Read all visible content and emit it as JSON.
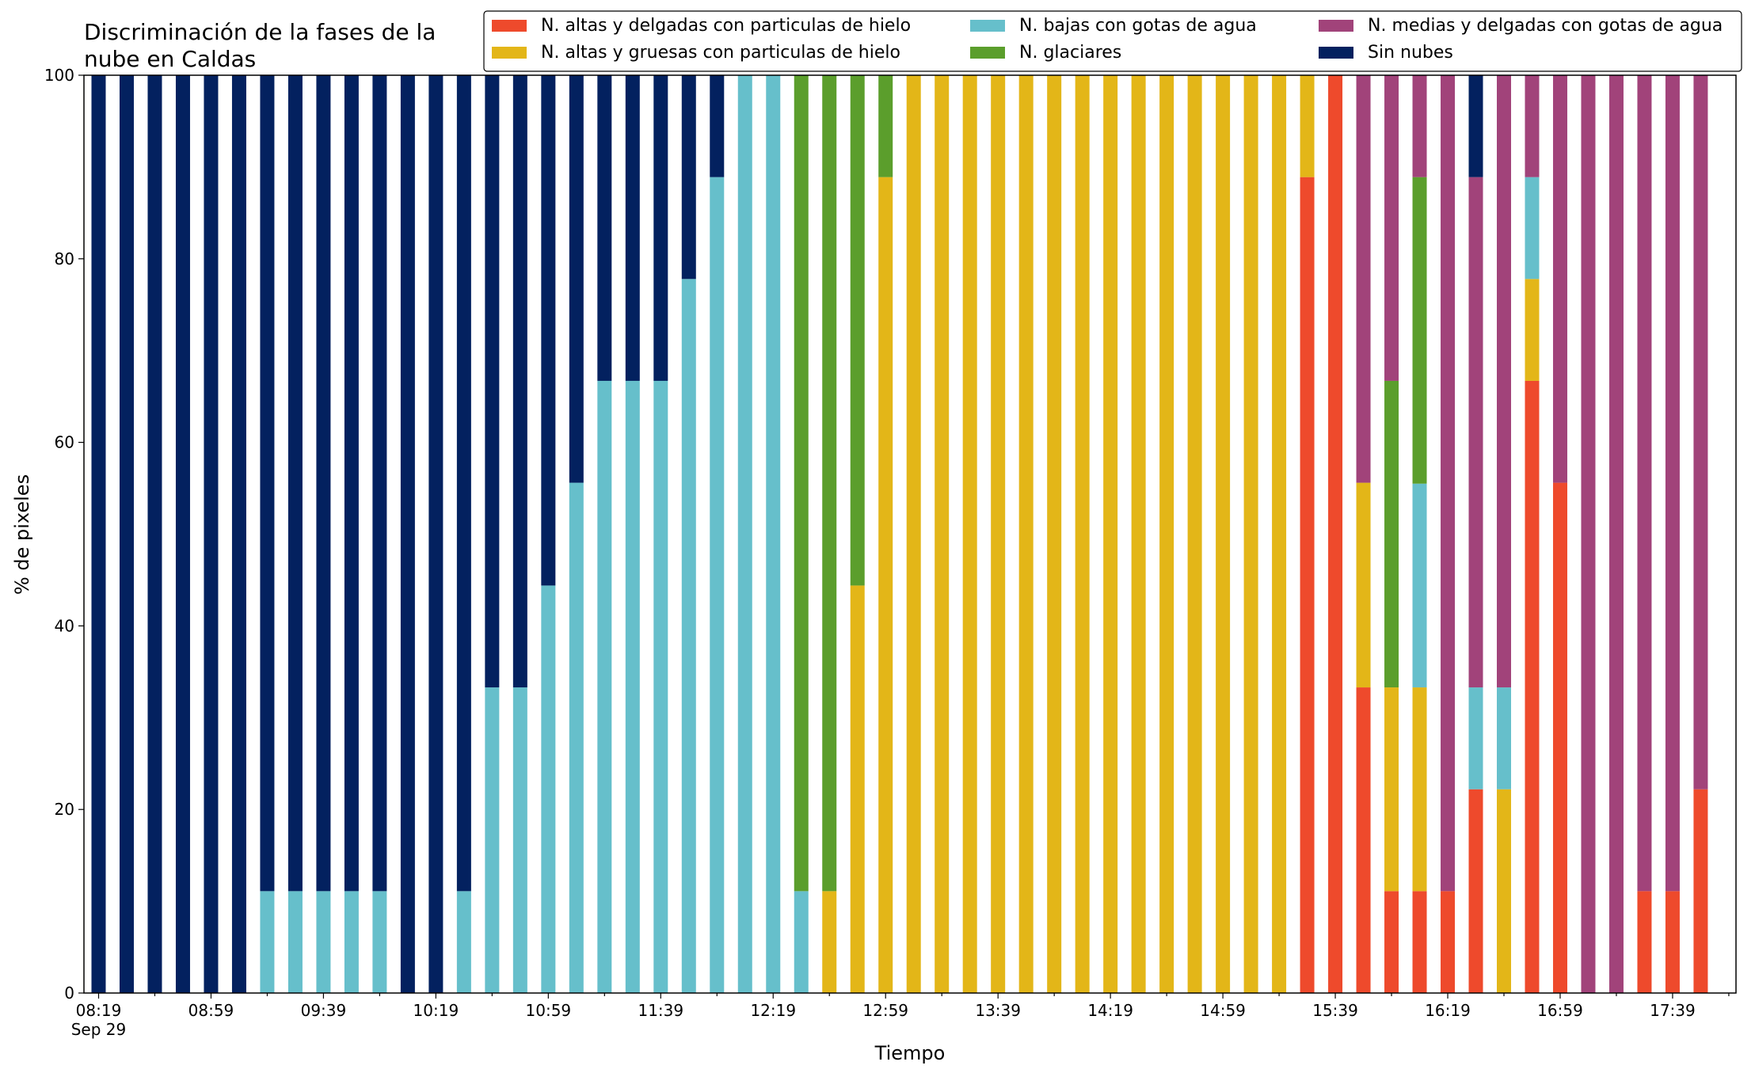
{
  "chart_data": {
    "type": "bar",
    "stacked": true,
    "title": "Discriminación de la fases de la\nnube en Caldas",
    "xlabel": "Tiempo",
    "ylabel": "% de pixeles",
    "ylim": [
      0,
      100
    ],
    "yticks": [
      0,
      20,
      40,
      60,
      80,
      100
    ],
    "grid": false,
    "legend_position": "top-right",
    "legend_columns": 3,
    "x_date": "Sep 29",
    "x_ticks": [
      "08:19",
      "08:59",
      "09:39",
      "10:19",
      "10:59",
      "11:39",
      "12:19",
      "12:59",
      "13:39",
      "14:19",
      "14:59",
      "15:39",
      "16:19",
      "16:59",
      "17:39"
    ],
    "categories": [
      "08:19",
      "08:29",
      "08:39",
      "08:49",
      "08:59",
      "09:09",
      "09:19",
      "09:29",
      "09:39",
      "09:49",
      "09:59",
      "10:09",
      "10:19",
      "10:29",
      "10:39",
      "10:49",
      "10:59",
      "11:09",
      "11:19",
      "11:29",
      "11:39",
      "11:49",
      "11:59",
      "12:09",
      "12:19",
      "12:29",
      "12:39",
      "12:49",
      "12:59",
      "13:09",
      "13:19",
      "13:29",
      "13:39",
      "13:49",
      "13:59",
      "14:09",
      "14:19",
      "14:29",
      "14:39",
      "14:49",
      "14:59",
      "15:09",
      "15:19",
      "15:29",
      "15:39",
      "15:49",
      "15:59",
      "16:09",
      "16:19",
      "16:29",
      "16:39",
      "16:49",
      "16:59",
      "17:09",
      "17:19",
      "17:29",
      "17:39",
      "17:49"
    ],
    "series": [
      {
        "name": "N. altas y delgadas con particulas de hielo",
        "color": "#ee4a2c",
        "values": [
          0,
          0,
          0,
          0,
          0,
          0,
          0,
          0,
          0,
          0,
          0,
          0,
          0,
          0,
          0,
          0,
          0,
          0,
          0,
          0,
          0,
          0,
          0,
          0,
          0,
          0,
          0,
          0,
          0,
          0,
          0,
          0,
          0,
          0,
          0,
          0,
          0,
          0,
          0,
          0,
          0,
          0,
          0,
          88.9,
          100,
          33.3,
          11.1,
          11.1,
          11.1,
          22.2,
          0,
          66.7,
          55.6,
          0,
          0,
          11.1,
          11.1,
          22.2
        ]
      },
      {
        "name": "N. altas y gruesas con particulas de hielo",
        "color": "#e3b618",
        "values": [
          0,
          0,
          0,
          0,
          0,
          0,
          0,
          0,
          0,
          0,
          0,
          0,
          0,
          0,
          0,
          0,
          0,
          0,
          0,
          0,
          0,
          0,
          0,
          0,
          0,
          0,
          11.1,
          44.4,
          88.9,
          100,
          100,
          100,
          100,
          100,
          100,
          100,
          100,
          100,
          100,
          100,
          100,
          100,
          100,
          11.1,
          0,
          22.3,
          22.2,
          22.2,
          0,
          0,
          22.2,
          11.1,
          0,
          0,
          0,
          0,
          0,
          0
        ]
      },
      {
        "name": "N. bajas con gotas de agua",
        "color": "#66bfcb",
        "values": [
          0,
          0,
          0,
          0,
          0,
          0,
          11.1,
          11.1,
          11.1,
          11.1,
          11.1,
          0,
          0,
          11.1,
          33.3,
          33.3,
          44.4,
          55.6,
          66.7,
          66.7,
          66.7,
          77.8,
          88.9,
          100,
          100,
          11.1,
          0,
          0,
          0,
          0,
          0,
          0,
          0,
          0,
          0,
          0,
          0,
          0,
          0,
          0,
          0,
          0,
          0,
          0,
          0,
          0,
          0,
          22.2,
          0,
          11.1,
          11.1,
          11.1,
          0,
          0,
          0,
          0,
          0,
          0
        ]
      },
      {
        "name": "N. glaciares",
        "color": "#5b9e2c",
        "values": [
          0,
          0,
          0,
          0,
          0,
          0,
          0,
          0,
          0,
          0,
          0,
          0,
          0,
          0,
          0,
          0,
          0,
          0,
          0,
          0,
          0,
          0,
          0,
          0,
          0,
          88.9,
          88.9,
          55.6,
          11.1,
          0,
          0,
          0,
          0,
          0,
          0,
          0,
          0,
          0,
          0,
          0,
          0,
          0,
          0,
          0,
          0,
          0,
          33.4,
          33.4,
          0,
          0,
          0,
          0,
          0,
          0,
          0,
          0,
          0,
          0
        ]
      },
      {
        "name": "N. medias y delgadas con gotas de agua",
        "color": "#a1437a",
        "values": [
          0,
          0,
          0,
          0,
          0,
          0,
          0,
          0,
          0,
          0,
          0,
          0,
          0,
          0,
          0,
          0,
          0,
          0,
          0,
          0,
          0,
          0,
          0,
          0,
          0,
          0,
          0,
          0,
          0,
          0,
          0,
          0,
          0,
          0,
          0,
          0,
          0,
          0,
          0,
          0,
          0,
          0,
          0,
          0,
          0,
          44.4,
          33.3,
          11.1,
          88.9,
          55.6,
          66.7,
          11.1,
          44.4,
          100,
          100,
          88.9,
          88.9,
          77.8
        ]
      },
      {
        "name": "Sin nubes",
        "color": "#03215f",
        "values": [
          100,
          100,
          100,
          100,
          100,
          100,
          88.9,
          88.9,
          88.9,
          88.9,
          88.9,
          100,
          100,
          88.9,
          66.7,
          66.7,
          55.6,
          44.4,
          33.3,
          33.3,
          33.3,
          22.2,
          11.1,
          0,
          0,
          0,
          0,
          0,
          0,
          0,
          0,
          0,
          0,
          0,
          0,
          0,
          0,
          0,
          0,
          0,
          0,
          0,
          0,
          0,
          0,
          0,
          0,
          0,
          0,
          11.1,
          0,
          0,
          0,
          0,
          0,
          0,
          0,
          0
        ]
      }
    ]
  }
}
